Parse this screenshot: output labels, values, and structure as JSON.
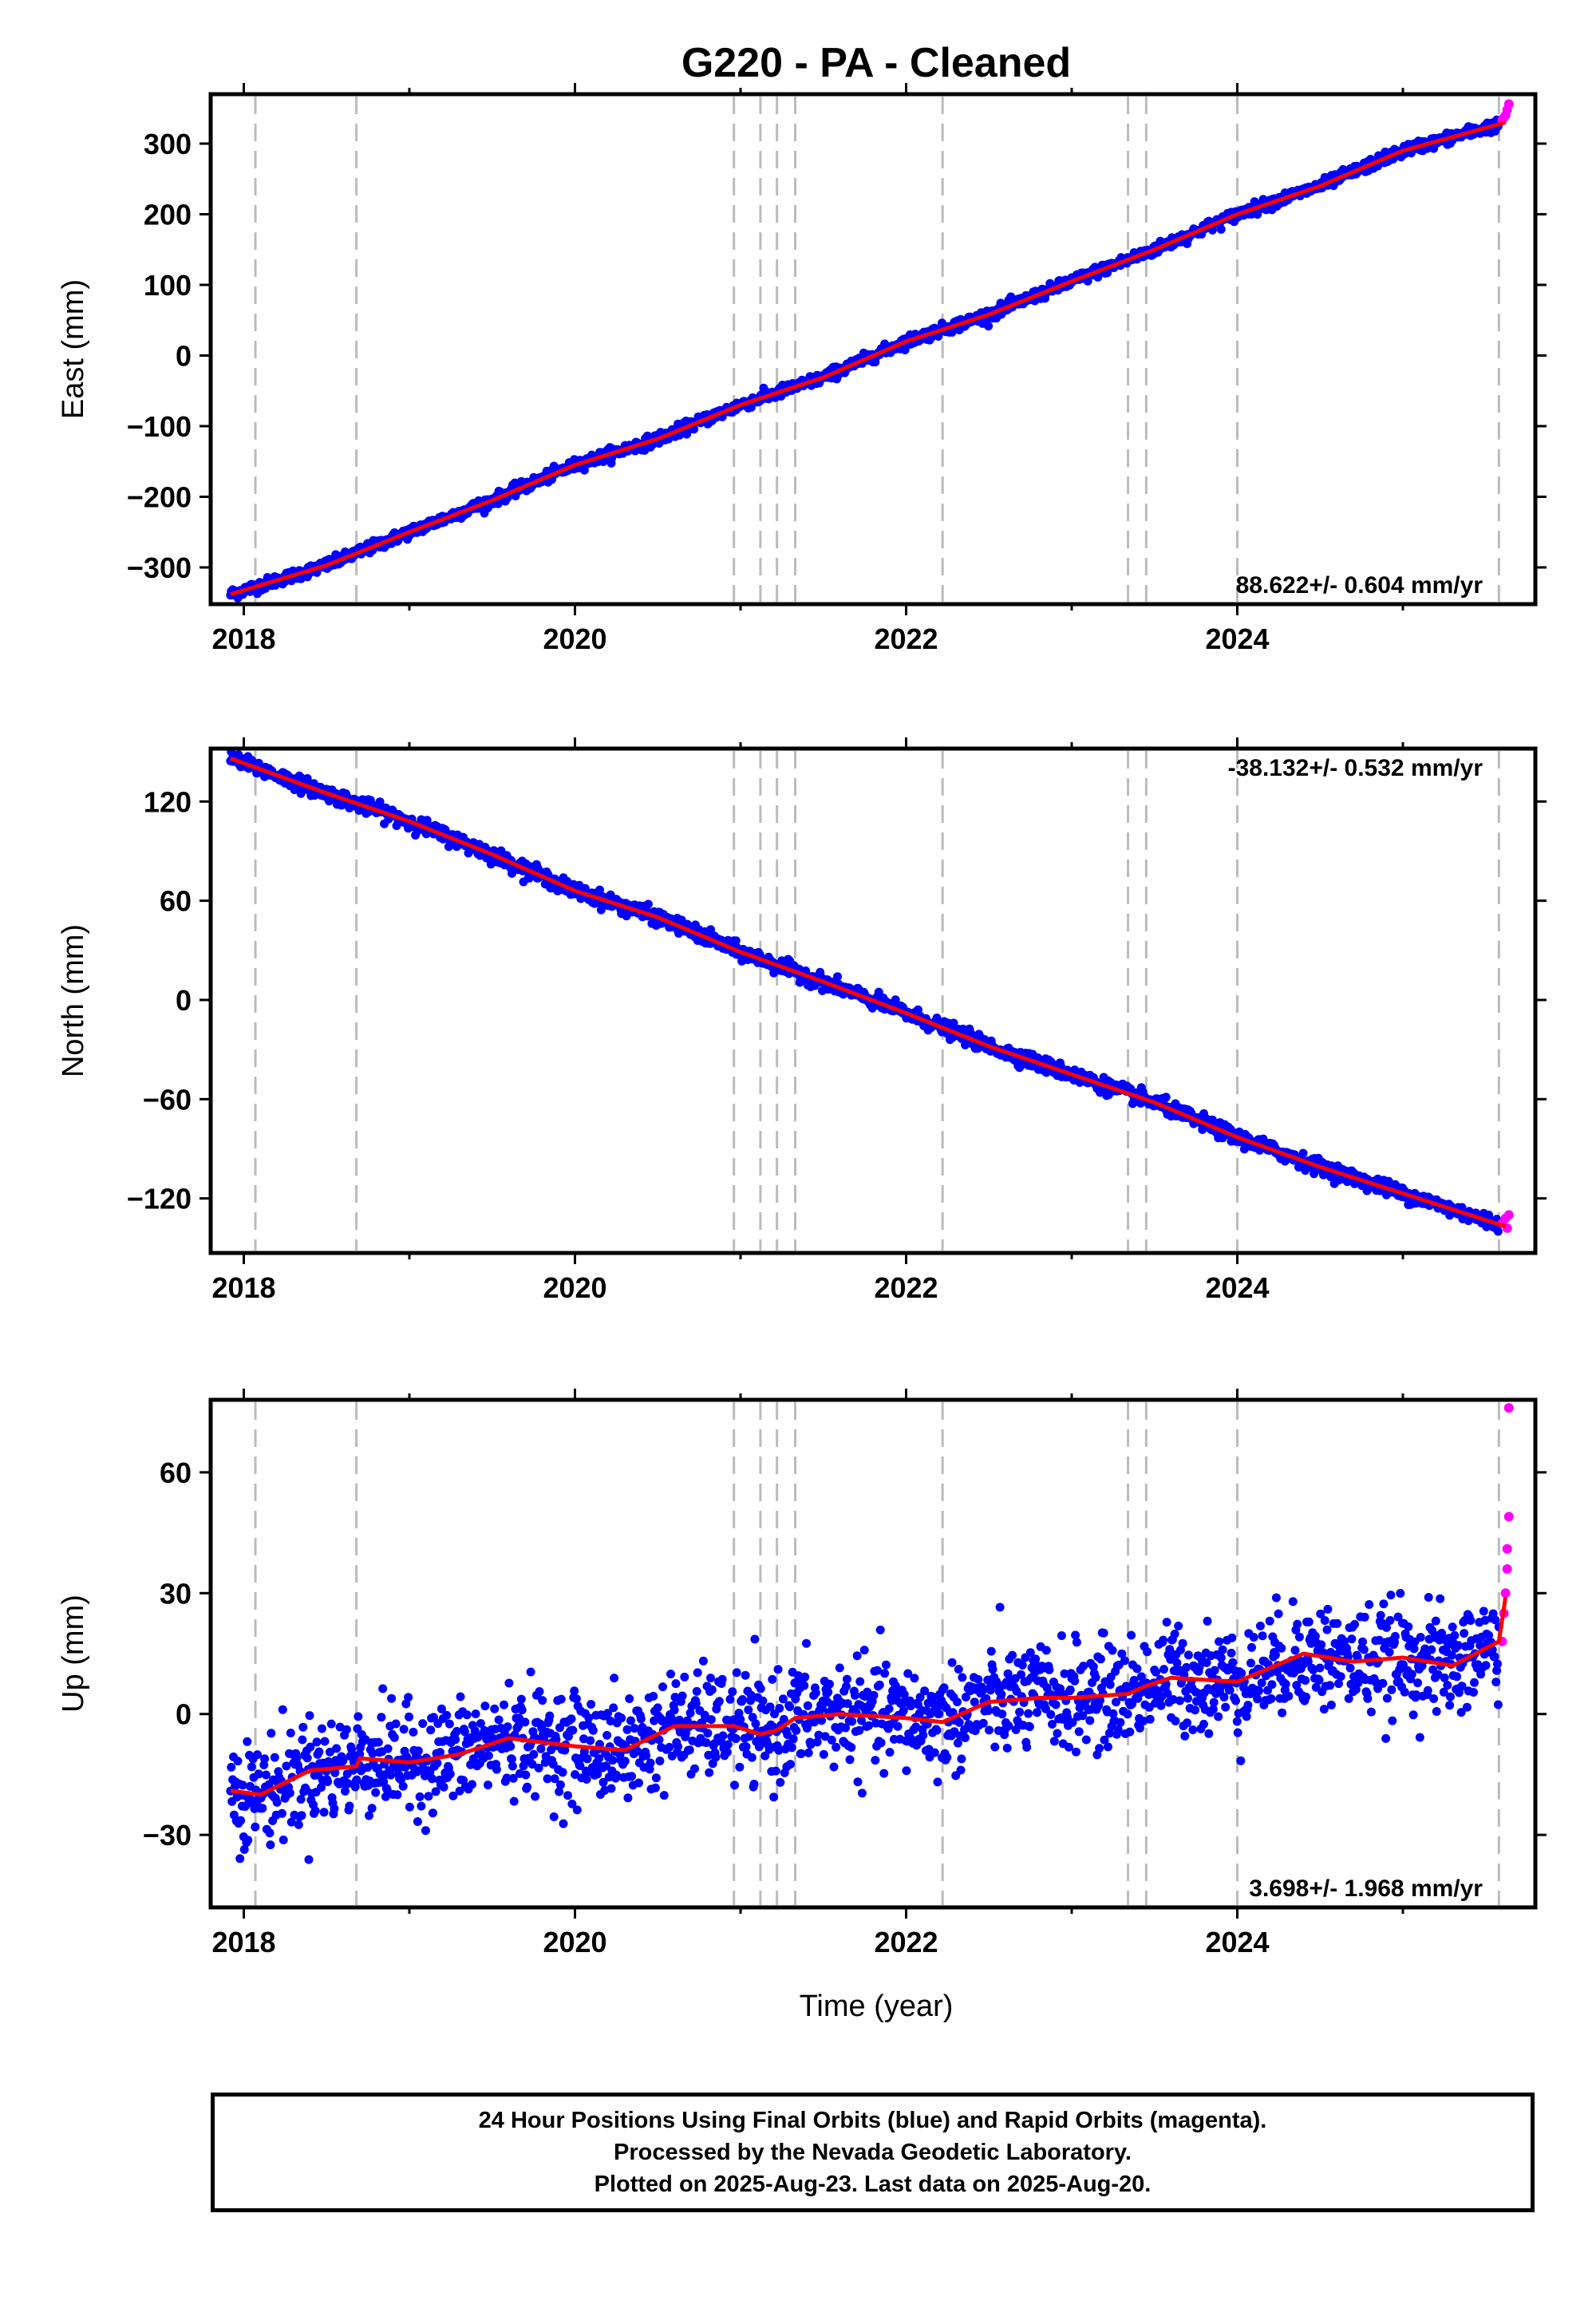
{
  "title": "G220  - PA - Cleaned",
  "xlabel": "Time (year)",
  "footer_lines": [
    "24 Hour Positions Using Final Orbits (blue) and Rapid Orbits (magenta).",
    "Processed by the Nevada Geodetic Laboratory.",
    "Plotted on 2025-Aug-23. Last data on 2025-Aug-20."
  ],
  "colors": {
    "final": "#0000ff",
    "rapid": "#ff00ff",
    "model": "#ff0000",
    "steps": "#bbbbbb"
  },
  "chart_data": [
    {
      "type": "scatter",
      "ylabel": "East (mm)",
      "rate_label": "88.622+/- 0.604 mm/yr",
      "rate_position": "bottom-right",
      "xlim": [
        2017.8,
        2025.8
      ],
      "ylim": [
        -352,
        370
      ],
      "xticks": [
        2018,
        2020,
        2022,
        2024
      ],
      "yticks": [
        300,
        200,
        100,
        0,
        -100,
        -200,
        -300
      ],
      "ytick_labels": [
        "300",
        "200",
        "100",
        "0",
        "−100",
        "−200",
        "−300"
      ],
      "step_epochs": [
        2018.07,
        2018.68,
        2020.96,
        2021.12,
        2021.22,
        2021.33,
        2022.22,
        2023.34,
        2023.45,
        2024.0,
        2025.58
      ],
      "model": {
        "x": [
          2017.92,
          2018.5,
          2019.0,
          2019.5,
          2020.0,
          2020.5,
          2021.0,
          2021.5,
          2022.0,
          2022.5,
          2023.0,
          2023.5,
          2024.0,
          2024.5,
          2025.0,
          2025.62
        ],
        "y": [
          -338,
          -297,
          -250,
          -205,
          -155,
          -118,
          -70,
          -31,
          20,
          58,
          105,
          150,
          200,
          240,
          290,
          330
        ]
      },
      "noise": 4,
      "rapid_points": [
        [
          2025.6,
          333
        ],
        [
          2025.62,
          340
        ],
        [
          2025.63,
          348
        ],
        [
          2025.64,
          356
        ],
        [
          2025.61,
          337
        ]
      ]
    },
    {
      "type": "scatter",
      "ylabel": "North (mm)",
      "rate_label": "-38.132+/- 0.532 mm/yr",
      "rate_position": "top-right",
      "xlim": [
        2017.8,
        2025.8
      ],
      "ylim": [
        -153,
        152
      ],
      "xticks": [
        2018,
        2020,
        2022,
        2024
      ],
      "yticks": [
        120,
        60,
        0,
        -60,
        -120
      ],
      "ytick_labels": [
        "120",
        "60",
        "0",
        "−60",
        "−120"
      ],
      "step_epochs": [
        2018.07,
        2018.68,
        2020.96,
        2021.12,
        2021.22,
        2021.33,
        2022.22,
        2023.34,
        2023.45,
        2024.0,
        2025.58
      ],
      "model": {
        "x": [
          2017.92,
          2018.5,
          2019.0,
          2019.5,
          2020.0,
          2020.5,
          2021.0,
          2021.5,
          2022.0,
          2022.5,
          2023.0,
          2023.5,
          2024.0,
          2024.5,
          2025.0,
          2025.62
        ],
        "y": [
          146,
          125,
          108,
          88,
          66,
          50,
          29,
          11,
          -8,
          -28,
          -45,
          -62,
          -83,
          -101,
          -117,
          -137
        ]
      },
      "noise": 2.2,
      "rapid_points": [
        [
          2025.6,
          -135
        ],
        [
          2025.62,
          -132
        ],
        [
          2025.63,
          -138
        ],
        [
          2025.64,
          -130
        ]
      ]
    },
    {
      "type": "scatter",
      "ylabel": "Up (mm)",
      "rate_label": "3.698+/- 1.968 mm/yr",
      "rate_position": "bottom-right",
      "xlim": [
        2017.8,
        2025.8
      ],
      "ylim": [
        -48,
        78
      ],
      "xticks": [
        2018,
        2020,
        2022,
        2024
      ],
      "yticks": [
        60,
        30,
        0,
        -30
      ],
      "ytick_labels": [
        "60",
        "30",
        "0",
        "−30"
      ],
      "step_epochs": [
        2018.07,
        2018.68,
        2020.96,
        2021.12,
        2021.22,
        2021.33,
        2022.22,
        2023.34,
        2023.45,
        2024.0,
        2025.58
      ],
      "model": {
        "x": [
          2017.92,
          2018.1,
          2018.4,
          2018.68,
          2018.7,
          2019.0,
          2019.3,
          2019.6,
          2020.0,
          2020.3,
          2020.6,
          2020.96,
          2021.12,
          2021.22,
          2021.33,
          2021.6,
          2022.0,
          2022.22,
          2022.5,
          2022.8,
          2023.0,
          2023.34,
          2023.45,
          2023.6,
          2024.0,
          2024.4,
          2024.7,
          2025.0,
          2025.3,
          2025.58,
          2025.62
        ],
        "y": [
          -19,
          -20,
          -14,
          -13,
          -11,
          -12,
          -10,
          -6,
          -8,
          -9,
          -3,
          -3,
          -5,
          -4,
          -1,
          0,
          -1,
          -2,
          3,
          4,
          4,
          5,
          7,
          9,
          8,
          15,
          13,
          14,
          12,
          18,
          29
        ]
      },
      "noise": 6.5,
      "rapid_points": [
        [
          2025.6,
          18
        ],
        [
          2025.61,
          25
        ],
        [
          2025.62,
          30
        ],
        [
          2025.63,
          36
        ],
        [
          2025.63,
          41
        ],
        [
          2025.64,
          49
        ],
        [
          2025.64,
          76
        ]
      ]
    }
  ]
}
